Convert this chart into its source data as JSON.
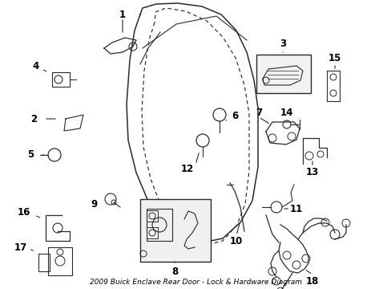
{
  "title": "2009 Buick Enclave Rear Door - Lock & Hardware Diagram",
  "bg_color": "#ffffff",
  "label_fontsize": 8.5,
  "title_fontsize": 6.5,
  "door_outer": {
    "x": [
      2.35,
      2.22,
      2.1,
      2.05,
      2.08,
      2.2,
      2.45,
      2.85,
      3.3,
      3.7,
      4.0,
      4.2,
      4.3,
      4.3,
      4.25,
      4.15,
      4.0,
      3.8,
      3.55,
      3.2,
      2.75,
      2.45,
      2.35
    ],
    "y": [
      9.55,
      9.2,
      8.4,
      7.0,
      5.8,
      5.0,
      4.35,
      3.9,
      3.7,
      3.75,
      4.0,
      4.35,
      5.0,
      6.5,
      7.3,
      8.0,
      8.55,
      9.0,
      9.35,
      9.6,
      9.7,
      9.65,
      9.55
    ]
  },
  "door_inner_dashed": {
    "x": [
      2.55,
      2.45,
      2.38,
      2.35,
      2.38,
      2.5,
      2.7,
      3.0,
      3.3,
      3.55,
      3.75,
      3.88,
      3.95,
      3.95,
      3.88,
      3.75,
      3.55,
      3.3,
      3.0,
      2.72,
      2.57,
      2.55
    ],
    "y": [
      9.3,
      9.0,
      8.3,
      7.1,
      6.0,
      5.25,
      4.65,
      4.2,
      4.05,
      4.15,
      4.45,
      4.85,
      5.5,
      6.8,
      7.4,
      7.95,
      8.4,
      8.75,
      9.05,
      9.25,
      9.35,
      9.3
    ]
  }
}
